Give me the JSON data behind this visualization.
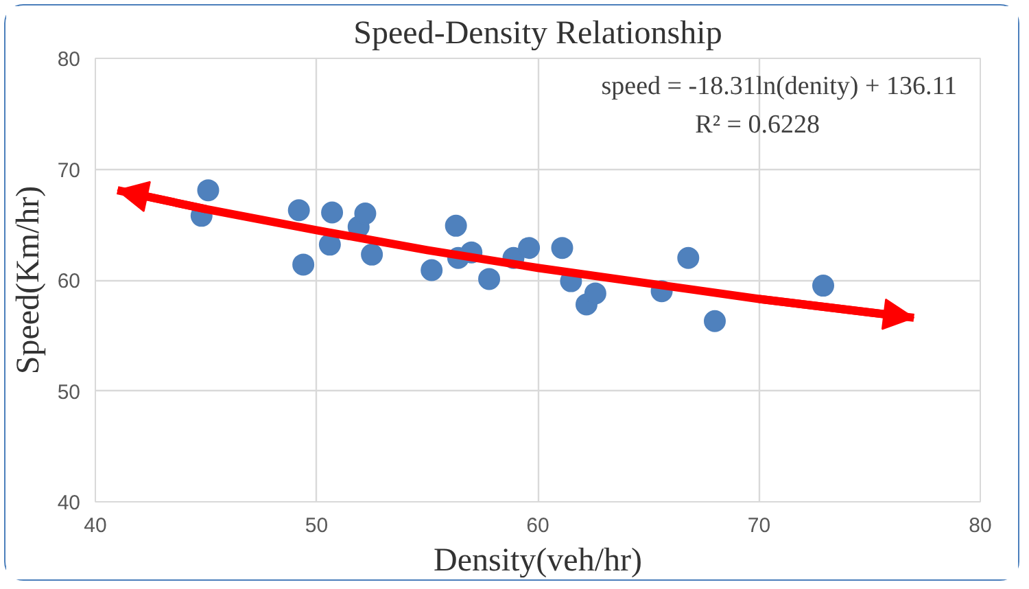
{
  "chart_data": {
    "type": "scatter",
    "title": "Speed-Density Relationship",
    "xlabel": "Density(veh/hr)",
    "ylabel": "Speed(Km/hr)",
    "xlim": [
      40,
      80
    ],
    "ylim": [
      40,
      80
    ],
    "xticks": [
      40,
      50,
      60,
      70,
      80
    ],
    "yticks": [
      40,
      50,
      60,
      70,
      80
    ],
    "grid": true,
    "annotations": [
      "speed = -18.31ln(denity) + 136.11",
      "R² = 0.6228"
    ],
    "series": [
      {
        "marker": "circle",
        "color": "#4f81bd",
        "x": [
          44.8,
          45.1,
          49.2,
          49.4,
          50.6,
          50.7,
          51.9,
          52.2,
          52.5,
          55.2,
          56.3,
          56.4,
          57.0,
          57.8,
          58.9,
          59.6,
          61.1,
          61.5,
          62.2,
          62.6,
          65.6,
          66.8,
          68.0,
          72.9
        ],
        "values": [
          65.8,
          68.1,
          66.3,
          61.4,
          63.2,
          66.1,
          64.8,
          66.0,
          62.3,
          60.9,
          64.9,
          62.0,
          62.5,
          60.1,
          62.0,
          62.9,
          62.9,
          59.9,
          57.8,
          58.8,
          59.0,
          62.0,
          56.3,
          59.5
        ]
      },
      {
        "type": "line",
        "marker": "none",
        "color": "#ff0000",
        "x": [
          41,
          45,
          50,
          55,
          60,
          65,
          70,
          77
        ],
        "values": [
          68.1,
          66.4,
          64.5,
          62.7,
          61.1,
          59.7,
          58.3,
          56.6
        ]
      }
    ]
  }
}
